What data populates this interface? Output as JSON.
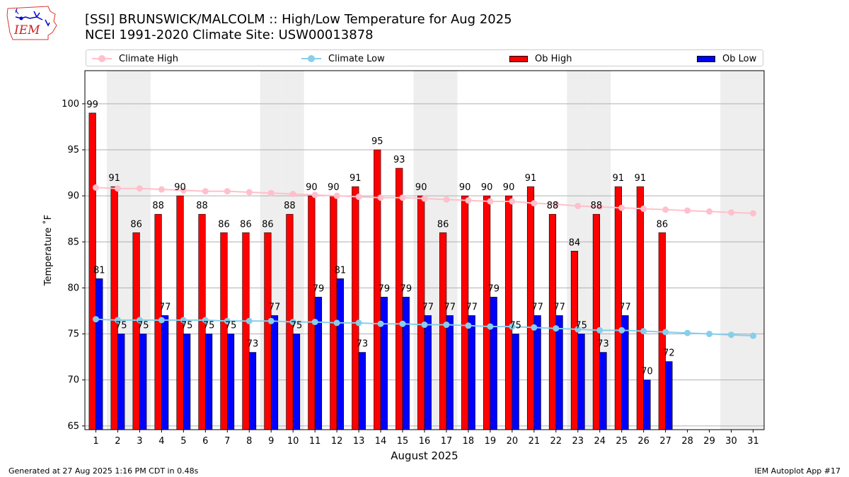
{
  "title": "[SSI] BRUNSWICK/MALCOLM :: High/Low Temperature for Aug 2025",
  "subtitle": "NCEI 1991-2020 Climate Site: USW00013878",
  "logo_text": "IEM",
  "footer_left": "Generated at 27 Aug 2025 1:16 PM CDT in 0.48s",
  "footer_right": "IEM Autoplot App #17",
  "colors": {
    "ob_high": "#ff0000",
    "ob_low": "#0000ff",
    "climate_high": "#ffc0cb",
    "climate_low": "#87ceeb",
    "weekend_band": "#eeeeee",
    "grid": "#b0b0b0"
  },
  "chart_data": {
    "type": "bar",
    "xlabel": "August 2025",
    "ylabel": "Temperature ˚F",
    "ylim": [
      64.6,
      103.6
    ],
    "yticks": [
      65,
      70,
      75,
      80,
      85,
      90,
      95,
      100
    ],
    "grid": "horizontal",
    "legend_position": "top",
    "days": [
      1,
      2,
      3,
      4,
      5,
      6,
      7,
      8,
      9,
      10,
      11,
      12,
      13,
      14,
      15,
      16,
      17,
      18,
      19,
      20,
      21,
      22,
      23,
      24,
      25,
      26,
      27,
      28,
      29,
      30,
      31
    ],
    "weekend_days": [
      2,
      3,
      9,
      10,
      16,
      17,
      23,
      24,
      30,
      31
    ],
    "series": [
      {
        "name": "Ob High",
        "kind": "bar",
        "values": [
          99,
          91,
          86,
          88,
          90,
          88,
          86,
          86,
          86,
          88,
          90,
          90,
          91,
          95,
          93,
          90,
          86,
          90,
          90,
          90,
          91,
          88,
          84,
          88,
          91,
          91,
          86,
          null,
          null,
          null,
          null
        ]
      },
      {
        "name": "Ob Low",
        "kind": "bar",
        "values": [
          81,
          75,
          75,
          77,
          75,
          75,
          75,
          73,
          77,
          75,
          79,
          81,
          73,
          79,
          79,
          77,
          77,
          77,
          79,
          75,
          77,
          77,
          75,
          73,
          77,
          70,
          72,
          null,
          null,
          null,
          null
        ]
      },
      {
        "name": "Climate High",
        "kind": "line",
        "values": [
          90.9,
          90.8,
          90.8,
          90.7,
          90.6,
          90.5,
          90.5,
          90.4,
          90.3,
          90.2,
          90.1,
          90.0,
          89.9,
          89.8,
          89.8,
          89.7,
          89.6,
          89.5,
          89.4,
          89.4,
          89.2,
          89.1,
          88.9,
          88.8,
          88.7,
          88.6,
          88.5,
          88.4,
          88.3,
          88.2,
          88.1
        ]
      },
      {
        "name": "Climate Low",
        "kind": "line",
        "values": [
          76.6,
          76.5,
          76.5,
          76.5,
          76.5,
          76.5,
          76.4,
          76.4,
          76.4,
          76.3,
          76.3,
          76.2,
          76.2,
          76.1,
          76.1,
          76.0,
          76.0,
          75.9,
          75.8,
          75.8,
          75.7,
          75.6,
          75.5,
          75.4,
          75.4,
          75.3,
          75.2,
          75.1,
          75.0,
          74.9,
          74.8
        ]
      }
    ]
  }
}
